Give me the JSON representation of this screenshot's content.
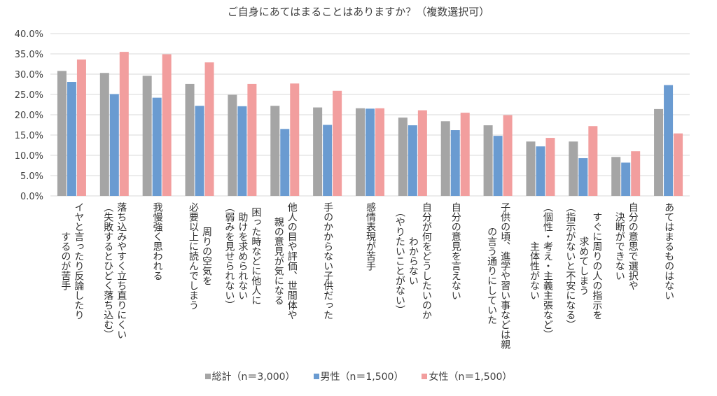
{
  "chart_data": {
    "type": "bar",
    "title": "ご自身にあてはまることはありますか？（複数選択可）",
    "xlabel": "",
    "ylabel": "",
    "ylim": [
      0,
      40
    ],
    "yticks": [
      "0.0%",
      "5.0%",
      "10.0%",
      "15.0%",
      "20.0%",
      "25.0%",
      "30.0%",
      "35.0%",
      "40.0%"
    ],
    "grid": true,
    "legend_position": "bottom",
    "categories": [
      "イヤと言ったり反論したり\nするのが苦手",
      "落ち込みやすく立ち直りにくい\n（失敗するとひどく落ち込む）",
      "我慢強く思われる",
      "周りの空気を\n必要以上に読んでしまう",
      "困った時などに他人に\n助けを求められない\n（弱みを見せられない）",
      "他人の目や評価、世間体や\n親の意見が気になる",
      "手のかからない子供だった",
      "感情表現が苦手",
      "自分が何をどうしたいのか\nわからない\n（やりたいことがない）",
      "自分の意見を言えない",
      "子供の頃、進学や習い事などは親\nの言う通りにしていた",
      "（個性・考え・主義主張など）\n主体性がない",
      "すぐに周りの人の指示を\n求めてしまう\n（指示がないと不安になる）",
      "自分の意思で選択や\n決断ができない",
      "あてはまるものはない"
    ],
    "series": [
      {
        "name": "総計（n＝3,000）",
        "color": "#a5a5a5",
        "values": [
          30.8,
          30.3,
          29.6,
          27.6,
          24.9,
          22.2,
          21.8,
          21.6,
          19.3,
          18.4,
          17.4,
          13.4,
          13.4,
          9.6,
          21.4
        ]
      },
      {
        "name": "男性（n＝1,500）",
        "color": "#6a9bd1",
        "values": [
          28.1,
          25.1,
          24.2,
          22.2,
          22.1,
          16.5,
          17.5,
          21.5,
          17.4,
          16.2,
          14.8,
          12.2,
          9.3,
          8.2,
          27.3
        ]
      },
      {
        "name": "女性（n＝1,500）",
        "color": "#f29e9e",
        "values": [
          33.6,
          35.5,
          34.9,
          32.9,
          27.6,
          27.7,
          25.9,
          21.6,
          21.1,
          20.5,
          19.9,
          14.3,
          17.2,
          11.0,
          15.4
        ]
      }
    ]
  }
}
